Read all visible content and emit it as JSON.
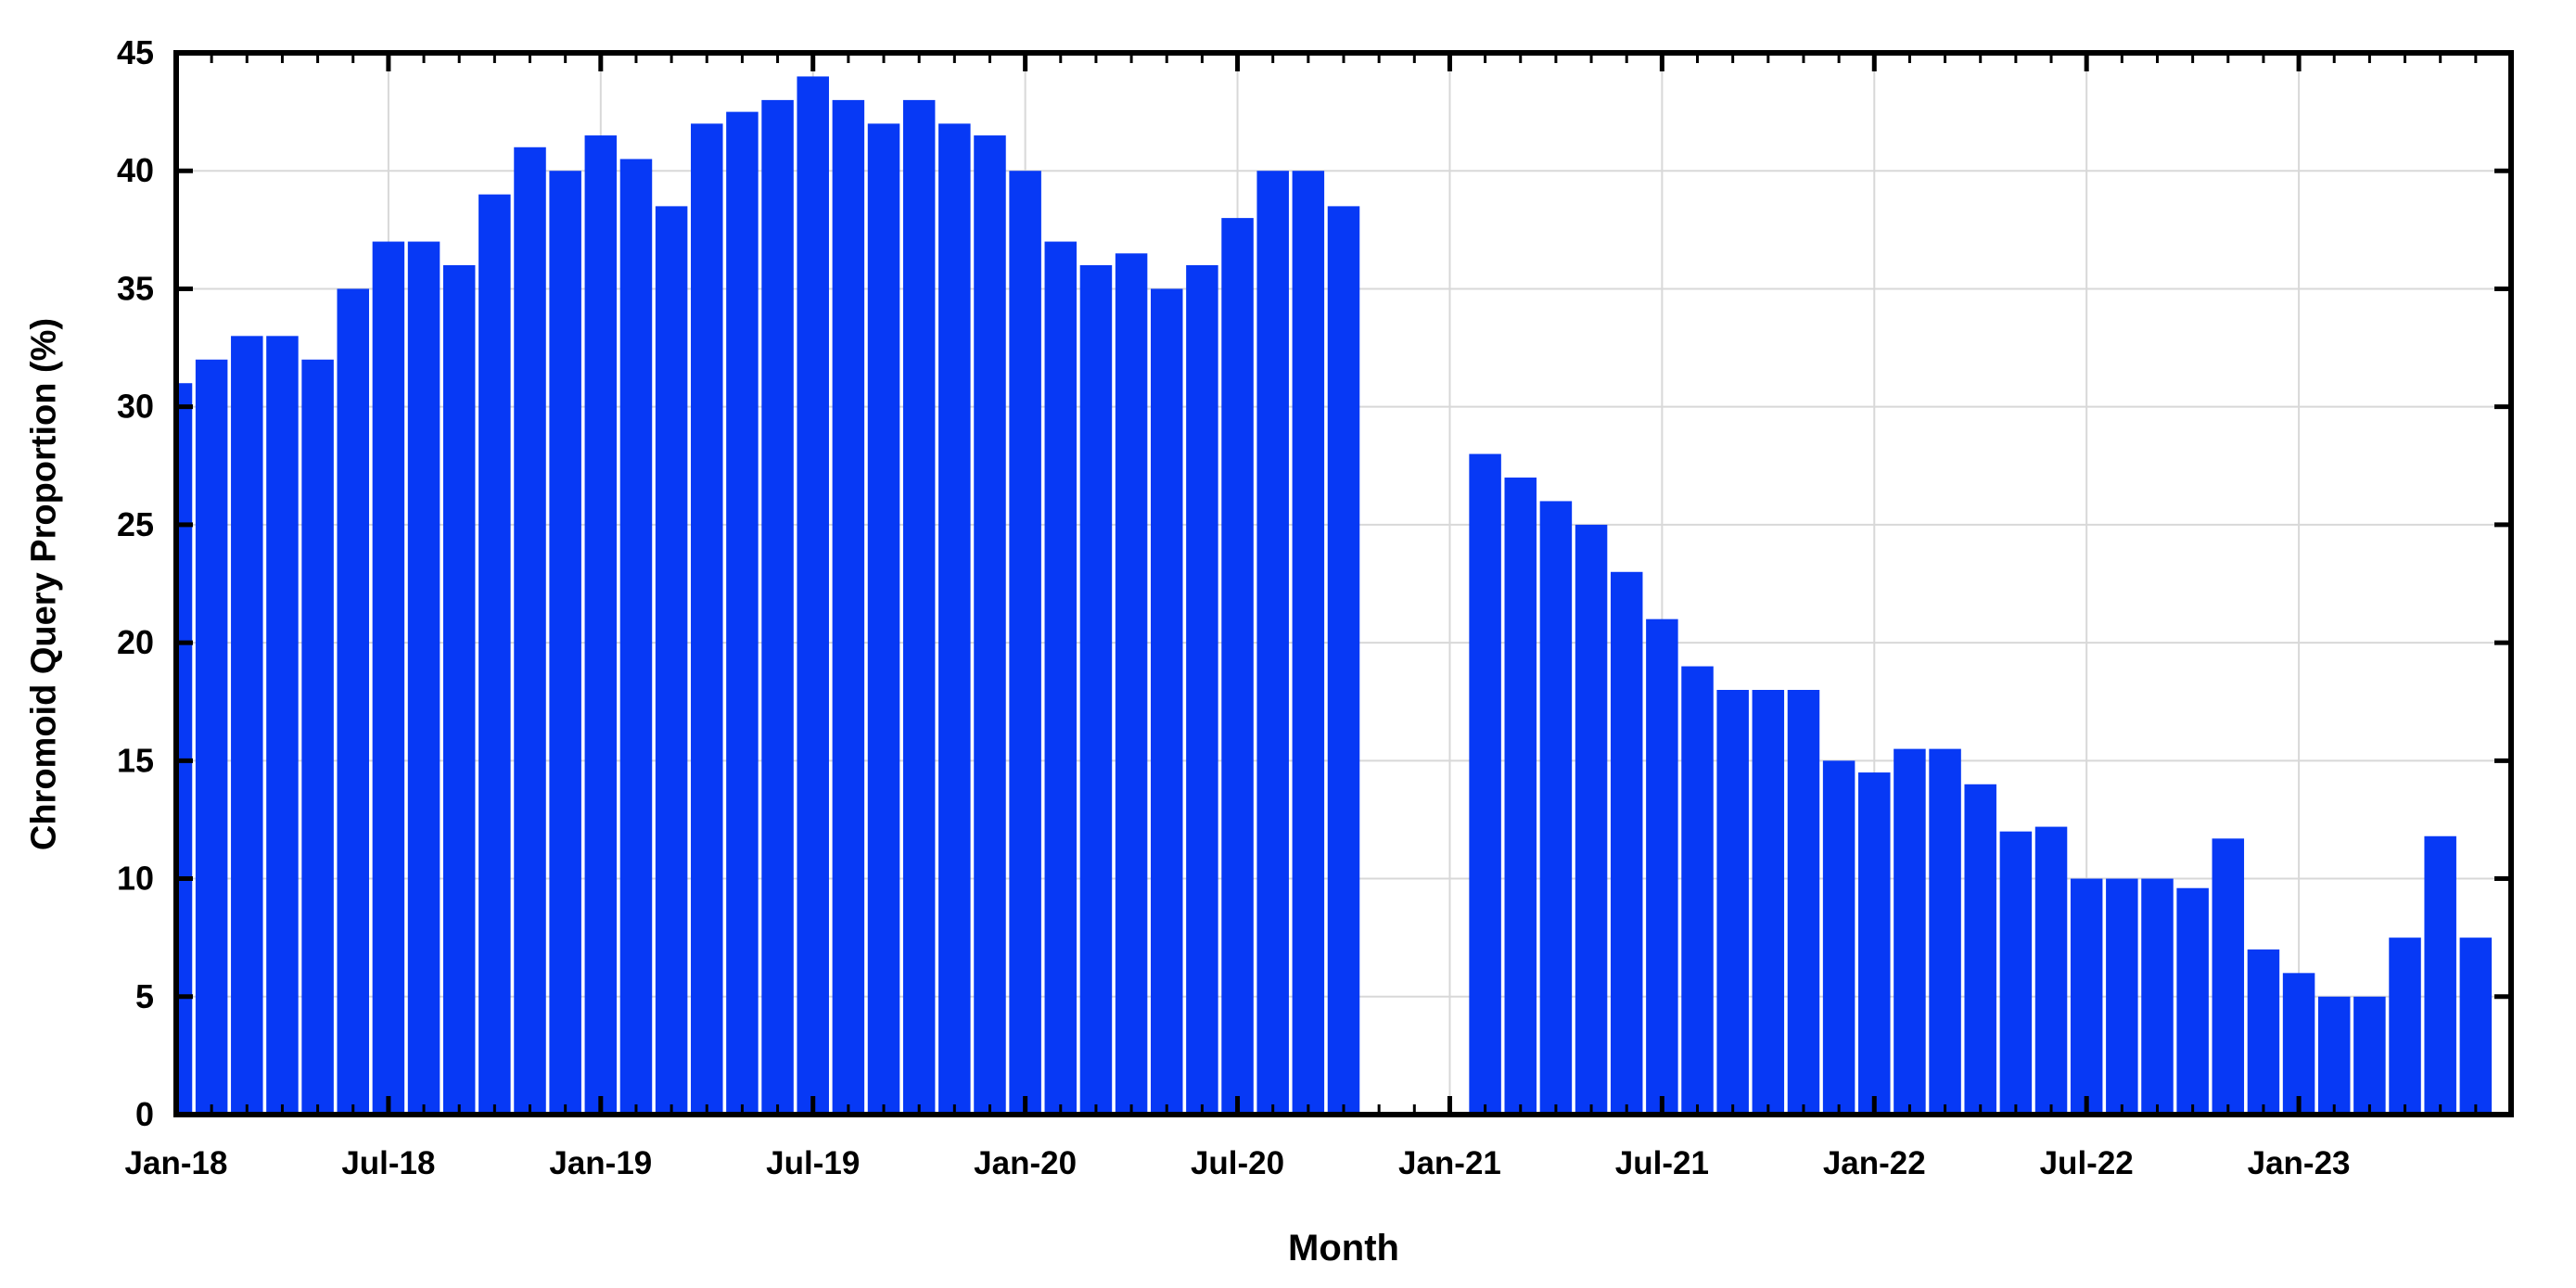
{
  "chart_data": {
    "type": "bar",
    "title": "",
    "xlabel": "Month",
    "ylabel": "Chromoid Query Proportion (%)",
    "ylim": [
      0,
      45
    ],
    "y_ticks": [
      0,
      5,
      10,
      15,
      20,
      25,
      30,
      35,
      40,
      45
    ],
    "x_tick_labels": [
      "Jan-18",
      "Jul-18",
      "Jan-19",
      "Jul-19",
      "Jan-20",
      "Jul-20",
      "Jan-21",
      "Jul-21",
      "Jan-22",
      "Jul-22",
      "Jan-23"
    ],
    "grid": true,
    "legend": "none",
    "bar_color": "#0739f5",
    "grid_color": "#d8d8d8",
    "axis_color": "#000000",
    "missing_months": [
      "Nov-20",
      "Dec-20",
      "Jan-21"
    ],
    "categories": [
      "Jan-18",
      "Feb-18",
      "Mar-18",
      "Apr-18",
      "May-18",
      "Jun-18",
      "Jul-18",
      "Aug-18",
      "Sep-18",
      "Oct-18",
      "Nov-18",
      "Dec-18",
      "Jan-19",
      "Feb-19",
      "Mar-19",
      "Apr-19",
      "May-19",
      "Jun-19",
      "Jul-19",
      "Aug-19",
      "Sep-19",
      "Oct-19",
      "Nov-19",
      "Dec-19",
      "Jan-20",
      "Feb-20",
      "Mar-20",
      "Apr-20",
      "May-20",
      "Jun-20",
      "Jul-20",
      "Aug-20",
      "Sep-20",
      "Oct-20",
      "Nov-20",
      "Dec-20",
      "Jan-21",
      "Feb-21",
      "Mar-21",
      "Apr-21",
      "May-21",
      "Jun-21",
      "Jul-21",
      "Aug-21",
      "Sep-21",
      "Oct-21",
      "Nov-21",
      "Dec-21",
      "Jan-22",
      "Feb-22",
      "Mar-22",
      "Apr-22",
      "May-22",
      "Jun-22",
      "Jul-22",
      "Aug-22",
      "Sep-22",
      "Oct-22",
      "Nov-22",
      "Dec-22",
      "Jan-23",
      "Feb-23",
      "Mar-23",
      "Apr-23",
      "May-23",
      "Jun-23"
    ],
    "values": [
      31,
      32,
      33,
      33,
      32,
      35,
      37,
      37,
      36,
      39,
      41,
      40,
      41.5,
      40.5,
      38.5,
      42,
      42.5,
      43,
      44,
      43,
      42,
      43,
      42,
      41.5,
      40,
      37,
      36,
      36.5,
      35,
      36,
      38,
      40,
      40,
      38.5,
      null,
      null,
      null,
      28,
      27,
      26,
      25,
      23,
      21,
      19,
      18,
      18,
      18,
      15,
      14.5,
      15.5,
      15.5,
      14,
      12,
      12.2,
      10,
      10,
      10,
      9.6,
      11.7,
      7,
      6,
      5,
      5,
      7.5,
      11.8,
      7.5
    ]
  }
}
